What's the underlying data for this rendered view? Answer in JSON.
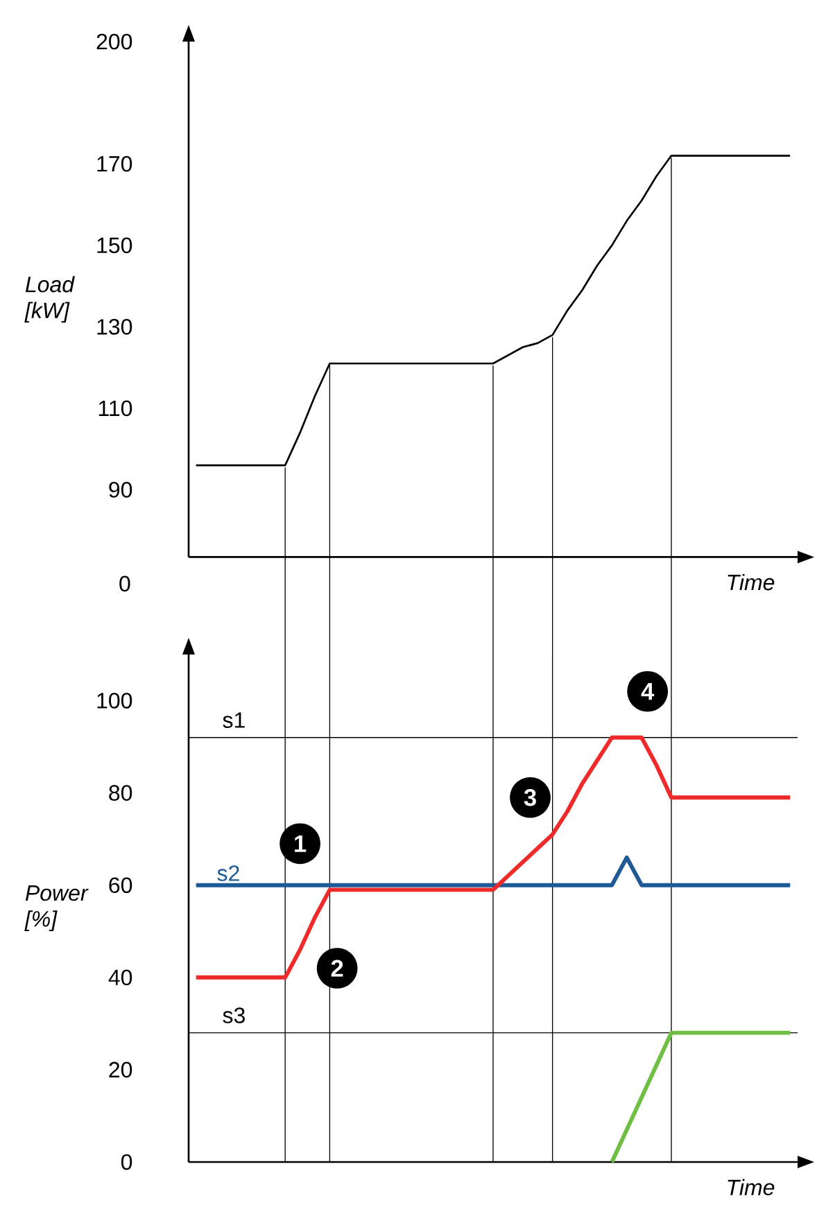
{
  "chart_data": [
    {
      "type": "line",
      "xlabel": "Time",
      "ylabel": "Load [kW]",
      "ylim": [
        73.5,
        200
      ],
      "tick_labels": "y",
      "grid": "x",
      "yticks": [
        90,
        110,
        130,
        150,
        170,
        200
      ],
      "annotations": [
        "0"
      ],
      "categories": [
        null,
        null,
        null,
        null,
        null,
        null,
        null,
        null,
        null,
        null,
        null,
        null,
        null,
        null,
        null,
        null,
        null,
        null,
        null,
        null,
        null,
        null,
        null,
        null,
        null,
        null,
        null,
        null,
        null,
        null,
        null,
        null,
        null,
        null,
        null,
        null,
        null,
        null,
        null,
        null,
        null
      ],
      "values": [
        96,
        96,
        96,
        96,
        96,
        96,
        96,
        104,
        113,
        121,
        121,
        121,
        121,
        121,
        121,
        121,
        121,
        121,
        121,
        121,
        121,
        123,
        125,
        126,
        128,
        134,
        139,
        145,
        150,
        156,
        161,
        167,
        172,
        172,
        172,
        172,
        172,
        172,
        172,
        172,
        172
      ],
      "color": "#000000"
    },
    {
      "type": "line",
      "xlabel": "Time",
      "ylabel": "Power [%]",
      "ylim": [
        0,
        110
      ],
      "tick_labels": "y",
      "grid": "x",
      "yticks": [
        0,
        20,
        40,
        60,
        80,
        100
      ],
      "categories": [
        null,
        null,
        null,
        null,
        null,
        null,
        null,
        null,
        null,
        null,
        null,
        null,
        null,
        null,
        null,
        null,
        null,
        null,
        null,
        null,
        null,
        null,
        null,
        null,
        null,
        null,
        null,
        null,
        null,
        null,
        null,
        null,
        null,
        null,
        null,
        null,
        null,
        null,
        null,
        null,
        null
      ],
      "series": [
        {
          "name": "s2",
          "color": "#1f5a96",
          "values": [
            60,
            60,
            60,
            60,
            60,
            60,
            60,
            60,
            60,
            60,
            60,
            60,
            60,
            60,
            60,
            60,
            60,
            60,
            60,
            60,
            60,
            60,
            60,
            60,
            60,
            60,
            60,
            60,
            60,
            66,
            60,
            60,
            60,
            60,
            60,
            60,
            60,
            60,
            60,
            60,
            60
          ]
        },
        {
          "color": "#ee2a2a",
          "values": [
            40,
            40,
            40,
            40,
            40,
            40,
            40,
            46,
            53,
            59,
            59,
            59,
            59,
            59,
            59,
            59,
            59,
            59,
            59,
            59,
            59,
            62,
            65,
            68,
            71,
            76,
            82,
            87,
            92,
            92,
            92,
            86,
            79,
            79,
            79,
            79,
            79,
            79,
            79,
            79,
            79
          ]
        },
        {
          "color": "#6fbf44",
          "values": [
            null,
            null,
            null,
            null,
            null,
            null,
            null,
            null,
            null,
            null,
            null,
            null,
            null,
            null,
            null,
            null,
            null,
            null,
            null,
            null,
            null,
            null,
            null,
            null,
            null,
            null,
            null,
            null,
            0,
            7,
            14,
            21,
            28,
            28,
            28,
            28,
            28,
            28,
            28,
            28,
            28
          ]
        }
      ],
      "ref_lines": [
        {
          "axis": "y",
          "value": 92,
          "label": "s1"
        },
        {
          "axis": "y",
          "value": 28,
          "label": "s3"
        }
      ],
      "annotations": [
        "1",
        "2",
        "3",
        "4"
      ]
    }
  ]
}
